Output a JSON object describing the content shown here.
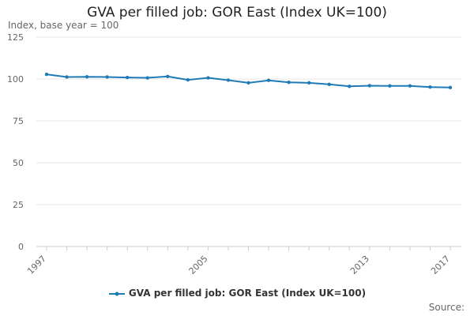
{
  "chart_data": {
    "type": "line",
    "title": "GVA per filled job: GOR East (Index UK=100)",
    "ylabel": "Index, base year = 100",
    "xlabel": "",
    "x": [
      1997,
      1998,
      1999,
      2000,
      2001,
      2002,
      2003,
      2004,
      2005,
      2006,
      2007,
      2008,
      2009,
      2010,
      2011,
      2012,
      2013,
      2014,
      2015,
      2016,
      2017
    ],
    "x_tick_labels": [
      "1997",
      "2005",
      "2013",
      "2017"
    ],
    "y_ticks": [
      0,
      25,
      50,
      75,
      100,
      125
    ],
    "ylim": [
      0,
      125
    ],
    "xlim": [
      1997,
      2017
    ],
    "grid": true,
    "legend_position": "bottom",
    "series": [
      {
        "name": "GVA per filled job: GOR East (Index UK=100)",
        "color": "#1f7bb5",
        "values": [
          102.8,
          101.2,
          101.3,
          101.2,
          100.9,
          100.7,
          101.5,
          99.5,
          100.7,
          99.3,
          97.7,
          99.2,
          98.0,
          97.7,
          96.8,
          95.6,
          96.0,
          95.9,
          95.9,
          95.2,
          94.9
        ]
      }
    ],
    "source": "Source:"
  }
}
